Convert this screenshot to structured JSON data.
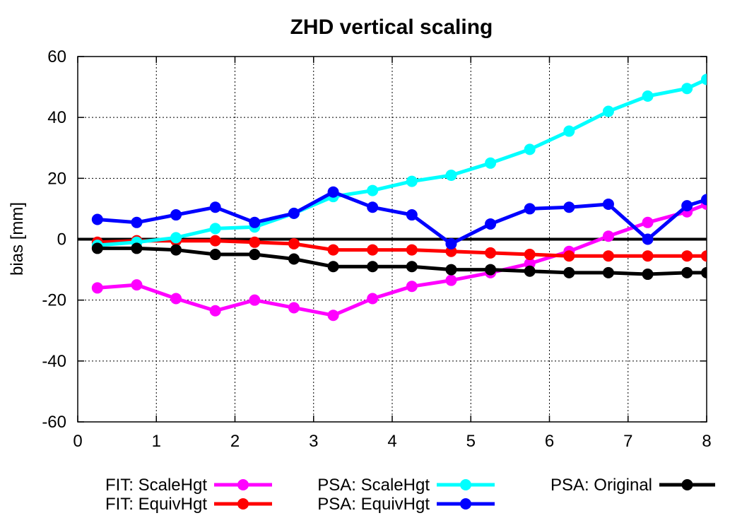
{
  "chart_data": {
    "type": "line",
    "title": "ZHD vertical scaling",
    "xlabel": "",
    "ylabel": "bias [mm]",
    "xlim": [
      0,
      8
    ],
    "ylim": [
      -60,
      60
    ],
    "xticks": [
      0,
      1,
      2,
      3,
      4,
      5,
      6,
      7,
      8
    ],
    "yticks": [
      -60,
      -40,
      -20,
      0,
      20,
      40,
      60
    ],
    "grid": true,
    "legend_position": "bottom",
    "series": [
      {
        "name": "FIT: ScaleHgt",
        "color": "#ff00ff",
        "x": [
          0.25,
          0.75,
          1.25,
          1.75,
          2.25,
          2.75,
          3.25,
          3.75,
          4.25,
          4.75,
          5.25,
          5.75,
          6.25,
          6.75,
          7.25,
          7.75,
          8.0
        ],
        "y": [
          -16,
          -15,
          -19.5,
          -23.5,
          -20,
          -22.5,
          -25,
          -19.5,
          -15.5,
          -13.5,
          -11,
          -8,
          -4,
          1,
          5.5,
          9,
          11.5
        ]
      },
      {
        "name": "FIT: EquivHgt",
        "color": "#ff0000",
        "x": [
          0.25,
          0.75,
          1.25,
          1.75,
          2.25,
          2.75,
          3.25,
          3.75,
          4.25,
          4.75,
          5.25,
          5.75,
          6.25,
          6.75,
          7.25,
          7.75,
          8.0
        ],
        "y": [
          -1,
          -0.5,
          -0.5,
          -0.5,
          -1,
          -1.5,
          -3.5,
          -3.5,
          -3.5,
          -4,
          -4.5,
          -5,
          -5.5,
          -5.5,
          -5.5,
          -5.5,
          -5.5
        ]
      },
      {
        "name": "PSA: ScaleHgt",
        "color": "#00ffff",
        "x": [
          0.25,
          0.75,
          1.25,
          1.75,
          2.25,
          2.75,
          3.25,
          3.75,
          4.25,
          4.75,
          5.25,
          5.75,
          6.25,
          6.75,
          7.25,
          7.75,
          8.0
        ],
        "y": [
          -2,
          -1,
          0.5,
          3.5,
          4,
          8.5,
          14,
          16,
          19,
          21,
          25,
          29.5,
          35.5,
          42,
          47,
          49.5,
          52.5
        ]
      },
      {
        "name": "PSA: EquivHgt",
        "color": "#0000ff",
        "x": [
          0.25,
          0.75,
          1.25,
          1.75,
          2.25,
          2.75,
          3.25,
          3.75,
          4.25,
          4.75,
          5.25,
          5.75,
          6.25,
          6.75,
          7.25,
          7.75,
          8.0
        ],
        "y": [
          6.5,
          5.5,
          8,
          10.5,
          5.5,
          8.5,
          15.5,
          10.5,
          8,
          -1.5,
          5,
          10,
          10.5,
          11.5,
          0,
          11,
          13
        ]
      },
      {
        "name": "PSA: Original",
        "color": "#000000",
        "x": [
          0.25,
          0.75,
          1.25,
          1.75,
          2.25,
          2.75,
          3.25,
          3.75,
          4.25,
          4.75,
          5.25,
          5.75,
          6.25,
          6.75,
          7.25,
          7.75,
          8.0
        ],
        "y": [
          -3,
          -3,
          -3.5,
          -5,
          -5,
          -6.5,
          -9,
          -9,
          -9,
          -10,
          -10,
          -10.5,
          -11,
          -11,
          -11.5,
          -11,
          -11
        ]
      }
    ],
    "zero_line": true
  }
}
